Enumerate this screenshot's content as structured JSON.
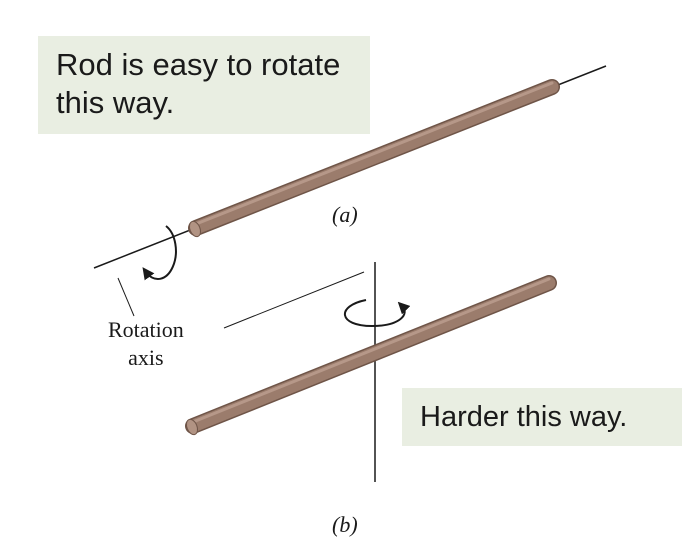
{
  "callout_a": {
    "line1": "Rod is easy to rotate",
    "line2": "this way."
  },
  "callout_b": {
    "text": "Harder this way."
  },
  "labels": {
    "panel_a": "(a)",
    "panel_b": "(b)",
    "rotation_axis_line1": "Rotation",
    "rotation_axis_line2": "axis"
  },
  "colors": {
    "rod": "#9b7c6c",
    "rod_highlight": "#c2a596",
    "rod_shadow": "#6f5548",
    "callout_background": "#e9eee2",
    "line": "#1a1a1a"
  }
}
